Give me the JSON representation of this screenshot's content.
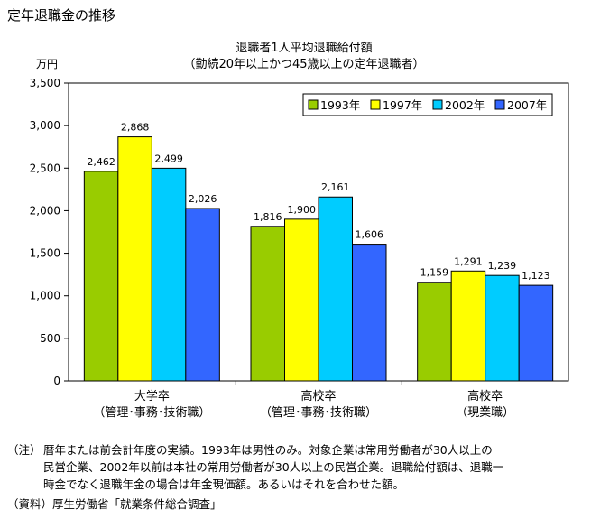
{
  "page": {
    "title": "定年退職金の推移"
  },
  "chart_data": {
    "type": "bar",
    "title": "退職者1人平均退職給付額",
    "subtitle": "（勤続20年以上かつ45歳以上の定年退職者）",
    "ylabel": "万円",
    "xlabel": "",
    "ylim": [
      0,
      3500
    ],
    "yticks": [
      0,
      500,
      1000,
      1500,
      2000,
      2500,
      3000,
      3500
    ],
    "ytick_labels": [
      "0",
      "500",
      "1,000",
      "1,500",
      "2,000",
      "2,500",
      "3,000",
      "3,500"
    ],
    "grid": false,
    "legend_position": "top-right",
    "categories": [
      {
        "line1": "大学卒",
        "line2": "（管理･事務･技術職）"
      },
      {
        "line1": "高校卒",
        "line2": "（管理･事務･技術職）"
      },
      {
        "line1": "高校卒",
        "line2": "（現業職）"
      }
    ],
    "series": [
      {
        "name": "1993年",
        "color": "#99cc00",
        "values": [
          2462,
          1816,
          1159
        ],
        "labels": [
          "2,462",
          "1,816",
          "1,159"
        ]
      },
      {
        "name": "1997年",
        "color": "#ffff00",
        "values": [
          2868,
          1900,
          1291
        ],
        "labels": [
          "2,868",
          "1,900",
          "1,291"
        ]
      },
      {
        "name": "2002年",
        "color": "#00ccff",
        "values": [
          2499,
          2161,
          1239
        ],
        "labels": [
          "2,499",
          "2,161",
          "1,239"
        ]
      },
      {
        "name": "2007年",
        "color": "#3366ff",
        "values": [
          2026,
          1606,
          1123
        ],
        "labels": [
          "2,026",
          "1,606",
          "1,123"
        ]
      }
    ]
  },
  "notes": {
    "note_marker": "（注）",
    "note_line1": "暦年または前会計年度の実績。1993年は男性のみ。対象企業は常用労働者が30人以上の",
    "note_line2": "民営企業、2002年以前は本社の常用労働者が30人以上の民営企業。退職給付額は、退職一",
    "note_line3": "時金でなく退職年金の場合は年金現価額。あるいはそれを合わせた額。",
    "source": "（資料）厚生労働省「就業条件総合調査」"
  }
}
